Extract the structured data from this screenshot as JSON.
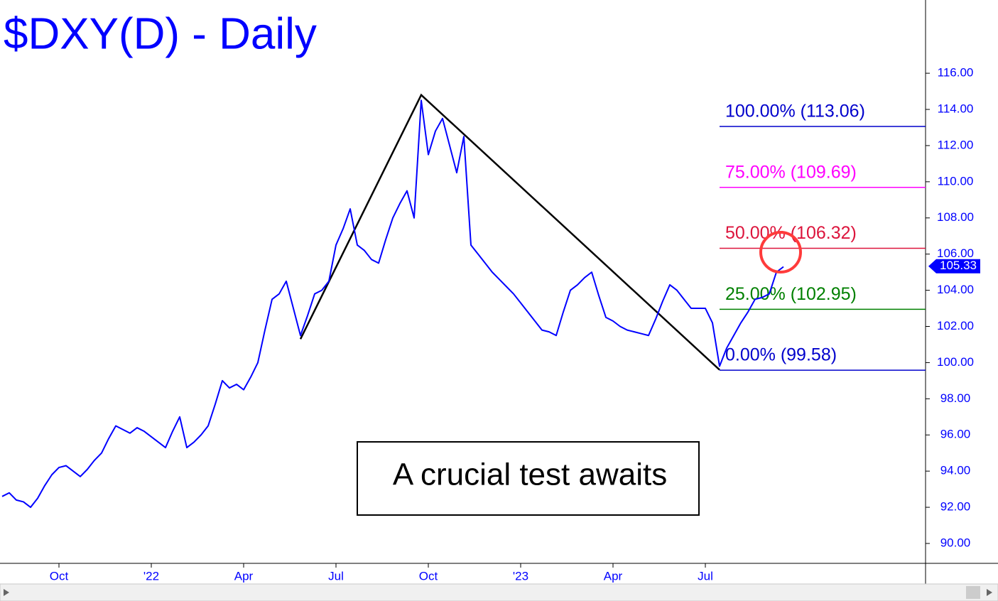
{
  "chart_data": {
    "type": "line",
    "title": "$DXY(D) - Daily",
    "annotation": "A crucial test awaits",
    "categories": [
      null,
      null,
      null,
      null,
      null,
      null,
      null,
      null,
      "Oct",
      null,
      null,
      null,
      null,
      null,
      null,
      null,
      null,
      null,
      null,
      null,
      null,
      "'22",
      null,
      null,
      null,
      null,
      null,
      null,
      null,
      null,
      null,
      null,
      null,
      null,
      "Apr",
      null,
      null,
      null,
      null,
      null,
      null,
      null,
      null,
      null,
      null,
      null,
      null,
      "Jul",
      null,
      null,
      null,
      null,
      null,
      null,
      null,
      null,
      null,
      null,
      null,
      null,
      "Oct",
      null,
      null,
      null,
      null,
      null,
      null,
      null,
      null,
      null,
      null,
      null,
      null,
      "'23",
      null,
      null,
      null,
      null,
      null,
      null,
      null,
      null,
      null,
      null,
      null,
      null,
      "Apr",
      null,
      null,
      null,
      null,
      null,
      null,
      null,
      null,
      null,
      null,
      null,
      null,
      "Jul",
      null,
      null,
      null,
      null,
      null,
      null,
      null,
      null,
      null,
      null,
      null
    ],
    "series": [
      {
        "name": "$DXY",
        "color": "#0000ff",
        "values": [
          92.6,
          92.8,
          92.4,
          92.3,
          92.0,
          92.5,
          93.2,
          93.8,
          94.2,
          94.3,
          94.0,
          93.7,
          94.1,
          94.6,
          95.0,
          95.8,
          96.5,
          96.3,
          96.1,
          96.4,
          96.2,
          95.9,
          95.6,
          95.3,
          96.2,
          97.0,
          95.3,
          95.6,
          96.0,
          96.5,
          97.7,
          99.0,
          98.6,
          98.8,
          98.5,
          99.2,
          100.0,
          101.8,
          103.5,
          103.8,
          104.5,
          103.0,
          101.5,
          102.6,
          103.8,
          104.0,
          104.5,
          106.5,
          107.4,
          108.5,
          106.5,
          106.2,
          105.7,
          105.5,
          106.8,
          108.0,
          108.8,
          109.5,
          108.0,
          114.5,
          111.5,
          112.8,
          113.5,
          112.0,
          110.5,
          112.5,
          106.5,
          106.0,
          105.5,
          105.0,
          104.6,
          104.2,
          103.8,
          103.3,
          102.8,
          102.3,
          101.8,
          101.7,
          101.5,
          102.8,
          104.0,
          104.3,
          104.7,
          105.0,
          103.7,
          102.5,
          102.3,
          102.0,
          101.8,
          101.7,
          101.6,
          101.5,
          102.4,
          103.4,
          104.3,
          104.0,
          103.5,
          103.0,
          103.0,
          103.0,
          102.2,
          99.8,
          100.8,
          101.5,
          102.2,
          102.8,
          103.5,
          103.6,
          103.8,
          105.0,
          105.3
        ]
      }
    ],
    "last_value": 105.33,
    "trendline": {
      "color": "#000000",
      "x": [
        42,
        59,
        101
      ],
      "y": [
        101.3,
        114.8,
        99.6
      ]
    },
    "fib_start": 101,
    "fib_levels": [
      {
        "label": "100.00% (113.06)",
        "value": 113.06,
        "color": "#0000cc"
      },
      {
        "label": "75.00% (109.69)",
        "value": 109.69,
        "color": "#ff00ff"
      },
      {
        "label": "50.00% (106.32)",
        "value": 106.32,
        "color": "#dc143c"
      },
      {
        "label": "25.00% (102.95)",
        "value": 102.95,
        "color": "#008000"
      },
      {
        "label": "0.00% (99.58)",
        "value": 99.58,
        "color": "#0000cc"
      }
    ],
    "ylim": [
      88.9,
      120.05
    ],
    "yticks": [
      {
        "value": 90,
        "label": "90.00"
      },
      {
        "value": 92,
        "label": "92.00"
      },
      {
        "value": 94,
        "label": "94.00"
      },
      {
        "value": 96,
        "label": "96.00"
      },
      {
        "value": 98,
        "label": "98.00"
      },
      {
        "value": 100,
        "label": "100.00"
      },
      {
        "value": 102,
        "label": "102.00"
      },
      {
        "value": 104,
        "label": "104.00"
      },
      {
        "value": 106,
        "label": "106.00"
      },
      {
        "value": 108,
        "label": "108.00"
      },
      {
        "value": 110,
        "label": "110.00"
      },
      {
        "value": 112,
        "label": "112.00"
      },
      {
        "value": 114,
        "label": "114.00"
      },
      {
        "value": 116,
        "label": "116.00"
      }
    ]
  }
}
